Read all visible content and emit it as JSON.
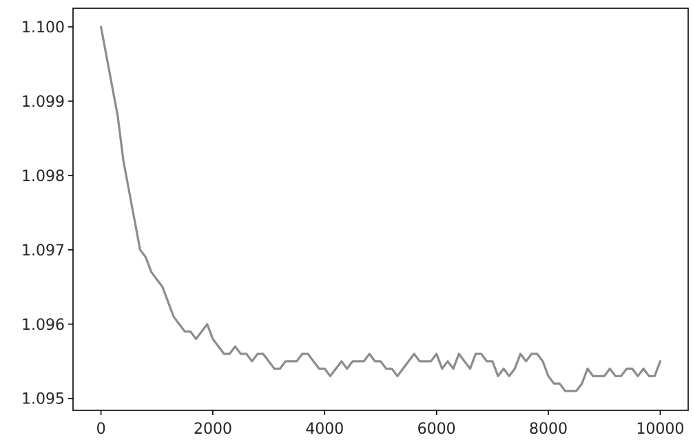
{
  "chart_data": {
    "type": "line",
    "title": "",
    "xlabel": "",
    "ylabel": "",
    "xlim": [
      -500,
      10500
    ],
    "ylim": [
      1.09484,
      1.10025
    ],
    "grid": false,
    "legend": "none",
    "line_color": "#8c8c8c",
    "x_ticks": [
      0,
      2000,
      4000,
      6000,
      8000,
      10000
    ],
    "x_tick_labels": [
      "0",
      "2000",
      "4000",
      "6000",
      "8000",
      "10000"
    ],
    "y_ticks": [
      1.095,
      1.096,
      1.097,
      1.098,
      1.099,
      1.1
    ],
    "y_tick_labels": [
      "1.095",
      "1.096",
      "1.097",
      "1.098",
      "1.099",
      "1.100"
    ],
    "series": [
      {
        "x": [
          0,
          100,
          200,
          300,
          400,
          500,
          600,
          700,
          800,
          900,
          1000,
          1100,
          1200,
          1300,
          1400,
          1500,
          1600,
          1700,
          1800,
          1900,
          2000,
          2100,
          2200,
          2300,
          2400,
          2500,
          2600,
          2700,
          2800,
          2900,
          3000,
          3100,
          3200,
          3300,
          3400,
          3500,
          3600,
          3700,
          3800,
          3900,
          4000,
          4100,
          4200,
          4300,
          4400,
          4500,
          4600,
          4700,
          4800,
          4900,
          5000,
          5100,
          5200,
          5300,
          5400,
          5500,
          5600,
          5700,
          5800,
          5900,
          6000,
          6100,
          6200,
          6300,
          6400,
          6500,
          6600,
          6700,
          6800,
          6900,
          7000,
          7100,
          7200,
          7300,
          7400,
          7500,
          7600,
          7700,
          7800,
          7900,
          8000,
          8100,
          8200,
          8300,
          8400,
          8500,
          8600,
          8700,
          8800,
          8900,
          9000,
          9100,
          9200,
          9300,
          9400,
          9500,
          9600,
          9700,
          9800,
          9900,
          10000
        ],
        "values": [
          1.1,
          1.0996,
          1.0992,
          1.0988,
          1.0982,
          1.0978,
          1.0974,
          1.097,
          1.0969,
          1.0967,
          1.0966,
          1.0965,
          1.0963,
          1.0961,
          1.096,
          1.0959,
          1.0959,
          1.0958,
          1.0959,
          1.096,
          1.0958,
          1.0957,
          1.0956,
          1.0956,
          1.0957,
          1.0956,
          1.0956,
          1.0955,
          1.0956,
          1.0956,
          1.0955,
          1.0954,
          1.0954,
          1.0955,
          1.0955,
          1.0955,
          1.0956,
          1.0956,
          1.0955,
          1.0954,
          1.0954,
          1.0953,
          1.0954,
          1.0955,
          1.0954,
          1.0955,
          1.0955,
          1.0955,
          1.0956,
          1.0955,
          1.0955,
          1.0954,
          1.0954,
          1.0953,
          1.0954,
          1.0955,
          1.0956,
          1.0955,
          1.0955,
          1.0955,
          1.0956,
          1.0954,
          1.0955,
          1.0954,
          1.0956,
          1.0955,
          1.0954,
          1.0956,
          1.0956,
          1.0955,
          1.0955,
          1.0953,
          1.0954,
          1.0953,
          1.0954,
          1.0956,
          1.0955,
          1.0956,
          1.0956,
          1.0955,
          1.0953,
          1.0952,
          1.0952,
          1.0951,
          1.0951,
          1.0951,
          1.0952,
          1.0954,
          1.0953,
          1.0953,
          1.0953,
          1.0954,
          1.0953,
          1.0953,
          1.0954,
          1.0954,
          1.0953,
          1.0954,
          1.0953,
          1.0953,
          1.0955
        ]
      }
    ]
  }
}
